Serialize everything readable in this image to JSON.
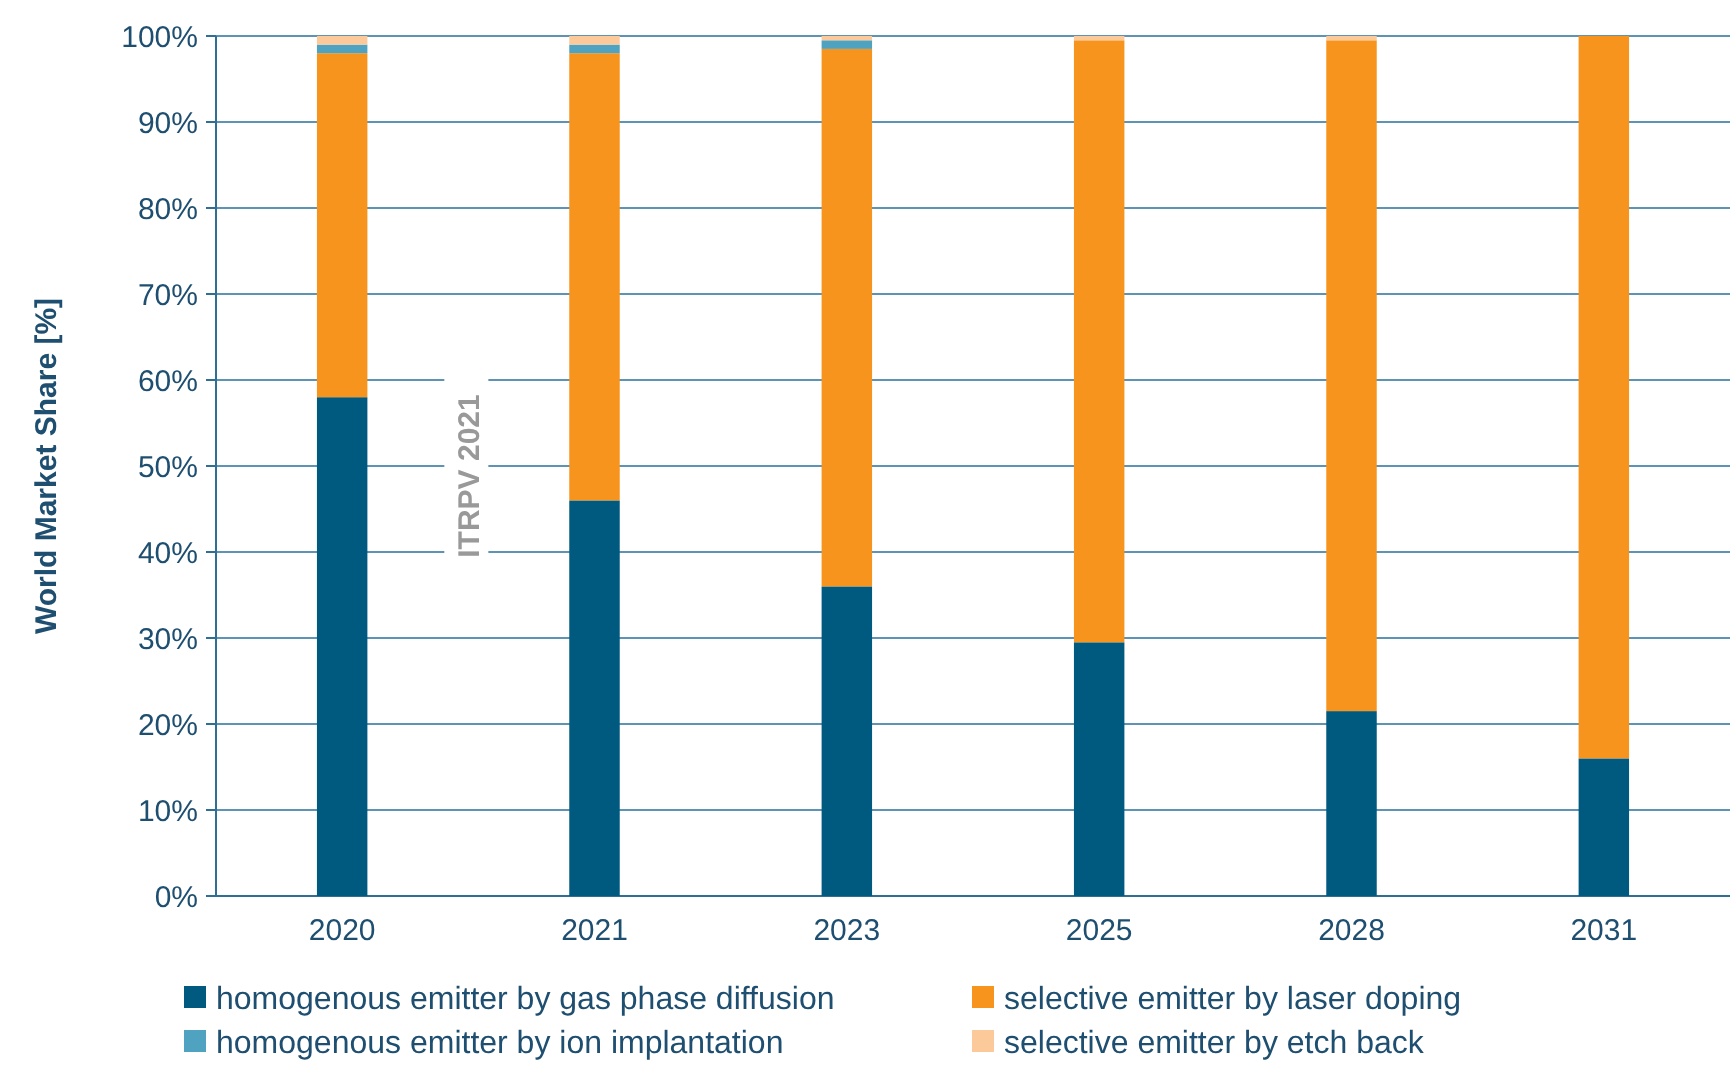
{
  "chart_data": {
    "type": "bar",
    "stacked": true,
    "ylabel": "World Market Share [%]",
    "categories": [
      "2020",
      "2021",
      "2023",
      "2025",
      "2028",
      "2031"
    ],
    "series": [
      {
        "name": "homogenous emitter by gas phase diffusion",
        "color": "#005a80",
        "values": [
          58,
          46,
          36,
          29.5,
          21.5,
          16
        ]
      },
      {
        "name": "selective emitter by laser doping",
        "color": "#f7941d",
        "values": [
          40,
          52,
          62.5,
          70,
          78,
          84
        ]
      },
      {
        "name": "homogenous emitter by ion implantation",
        "color": "#4fa3c0",
        "values": [
          1,
          1,
          1,
          0,
          0,
          0
        ]
      },
      {
        "name": "selective emitter by etch back",
        "color": "#fcc99b",
        "values": [
          1,
          1,
          0.5,
          0.5,
          0.5,
          0
        ]
      }
    ],
    "ylim": [
      0,
      100
    ],
    "yticks": [
      {
        "value": 0,
        "label": "0%"
      },
      {
        "value": 10,
        "label": "10%"
      },
      {
        "value": 20,
        "label": "20%"
      },
      {
        "value": 30,
        "label": "30%"
      },
      {
        "value": 40,
        "label": "40%"
      },
      {
        "value": 50,
        "label": "50%"
      },
      {
        "value": 60,
        "label": "60%"
      },
      {
        "value": 70,
        "label": "70%"
      },
      {
        "value": 80,
        "label": "80%"
      },
      {
        "value": 90,
        "label": "90%"
      },
      {
        "value": 100,
        "label": "100%"
      }
    ],
    "grid": "y",
    "legend": "bottom",
    "annotations": [
      "ITRPV 2021"
    ]
  }
}
